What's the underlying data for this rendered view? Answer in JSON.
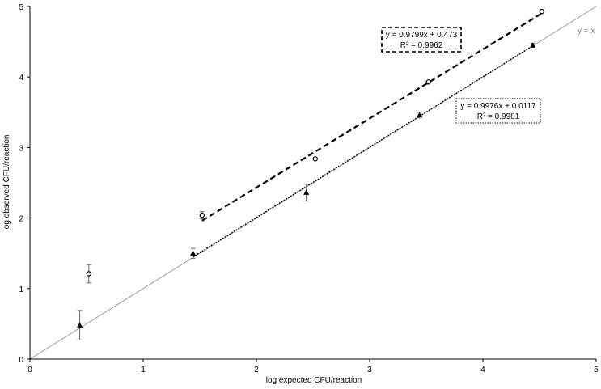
{
  "chart_data": {
    "type": "scatter",
    "title": "",
    "xlabel": "log expected CFU/reaction",
    "ylabel": "log observed CFU/reaction",
    "xlim": [
      0,
      5
    ],
    "ylim": [
      0,
      5
    ],
    "xticks": [
      "0",
      "1",
      "2",
      "3",
      "4",
      "5"
    ],
    "yticks": [
      "0",
      "1",
      "2",
      "3",
      "4",
      "5"
    ],
    "grid": false,
    "legend": "none",
    "series": [
      {
        "marker": "open-circle",
        "x": [
          0.52,
          1.52,
          2.52,
          3.52,
          4.52
        ],
        "y": [
          1.21,
          2.04,
          2.84,
          3.93,
          4.93
        ],
        "err": [
          0.13,
          0.05,
          0.0,
          0.0,
          0.0
        ]
      },
      {
        "marker": "filled-triangle",
        "x": [
          0.44,
          1.44,
          2.44,
          3.44,
          4.44
        ],
        "y": [
          0.48,
          1.5,
          2.36,
          3.46,
          4.45
        ],
        "err": [
          0.21,
          0.07,
          0.12,
          0.04,
          0.03
        ]
      }
    ],
    "fits": [
      {
        "style": "dashed",
        "slope": 0.9799,
        "intercept": 0.473,
        "x_range": [
          1.52,
          4.52
        ],
        "equation": "y = 0.9799x + 0.473",
        "r2": "R² = 0.9962"
      },
      {
        "style": "dotted",
        "slope": 0.9976,
        "intercept": 0.0117,
        "x_range": [
          1.44,
          4.44
        ],
        "equation": "y = 0.9976x + 0.0117",
        "r2": "R² = 0.9981"
      }
    ],
    "reference_line": {
      "label": "y = x",
      "slope": 1,
      "intercept": 0,
      "x_range": [
        0,
        5
      ],
      "color": "#999999"
    }
  }
}
